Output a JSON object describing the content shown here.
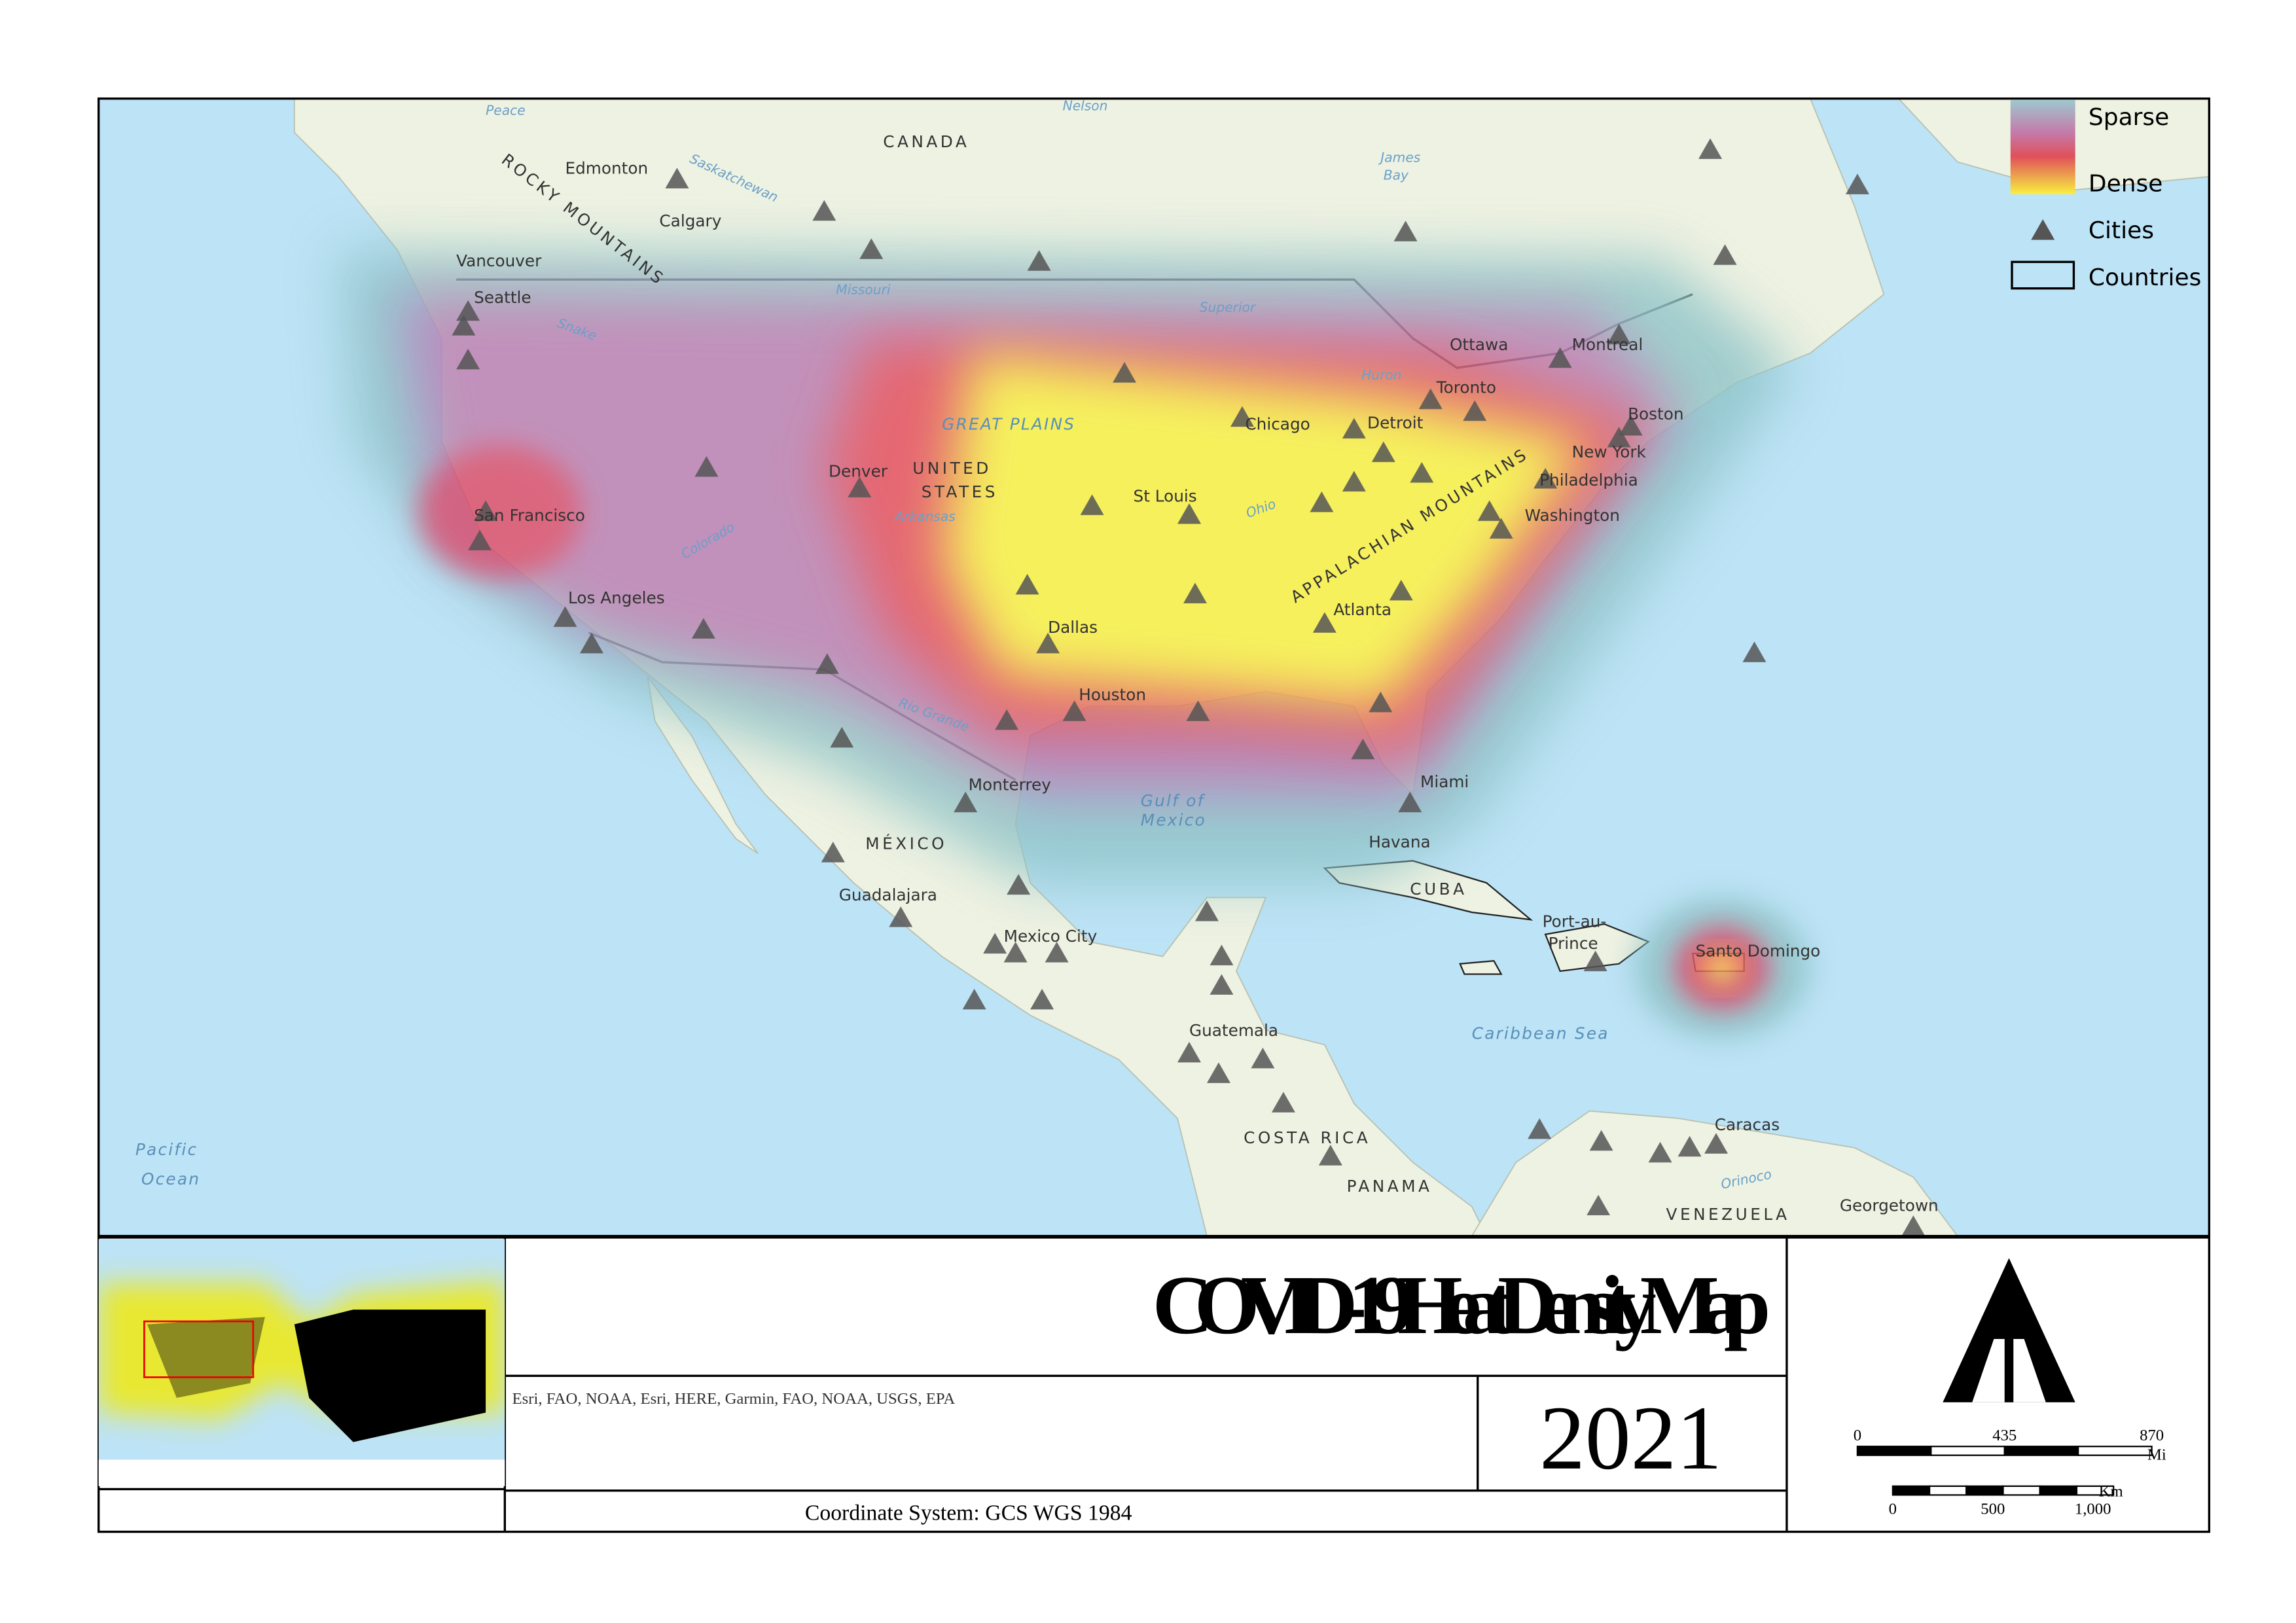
{
  "legend": {
    "sparse": "Sparse",
    "dense": "Dense",
    "cities": "Cities",
    "countries": "Countries"
  },
  "map_labels": [
    "Edmonton",
    "Calgary",
    "Vancouver",
    "Seattle",
    "CANADA",
    "ROCKY MOUNTAINS",
    "Saskatchewan",
    "Missouri",
    "Ottawa",
    "Montreal",
    "Toronto",
    "Detroit",
    "Chicago",
    "Boston",
    "New York",
    "Philadelphia",
    "Washington",
    "UNITED",
    "STATES",
    "GREAT PLAINS",
    "Denver",
    "St Louis",
    "San Francisco",
    "Los Angeles",
    "Dallas",
    "Atlanta",
    "APPALACHIAN MOUNTAINS",
    "Houston",
    "Monterrey",
    "Gulf of",
    "Mexico",
    "Miami",
    "Havana",
    "MÉXICO",
    "Guadalajara",
    "Mexico City",
    "CUBA",
    "Port-au-",
    "Prince",
    "Santo Domingo",
    "Guatemala",
    "Caribbean Sea",
    "COSTA RICA",
    "PANAMA",
    "Caracas",
    "VENEZUELA",
    "Georgetown",
    "Pacific",
    "Ocean",
    "Orinoco",
    "Arkansas",
    "Colorado",
    "Ohio",
    "Rio Grande",
    "Superior",
    "Huron",
    "James",
    "Bay",
    "Snake",
    "Peace",
    "Nelson"
  ],
  "title": "COVID-19 Heat Density Map",
  "credits": "Esri, FAO, NOAA, Esri, HERE, Garmin, FAO, NOAA, USGS, EPA",
  "year": "2021",
  "coordinate_system": "Coordinate System: GCS WGS 1984",
  "scale_bar": {
    "miles": {
      "ticks": [
        "0",
        "435",
        "870"
      ],
      "unit": "Mi"
    },
    "kilometers": {
      "ticks": [
        "0",
        "500",
        "1,000"
      ],
      "unit": "Km"
    }
  }
}
